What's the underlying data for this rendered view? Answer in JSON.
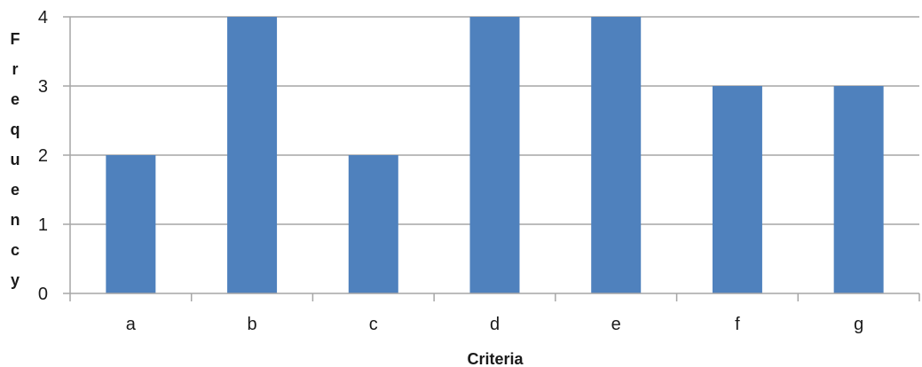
{
  "chart_data": {
    "type": "bar",
    "title": "",
    "xlabel": "Criteria",
    "ylabel": "Frequency",
    "categories": [
      "a",
      "b",
      "c",
      "d",
      "e",
      "f",
      "g"
    ],
    "values": [
      2,
      4,
      2,
      4,
      4,
      3,
      3
    ],
    "ylim": [
      0,
      4
    ],
    "yticks": [
      "0",
      "1",
      "2",
      "3",
      "4"
    ],
    "grid": true,
    "legend": "none",
    "bar_color": "#4F81BD",
    "grid_color": "#a6a6a6"
  }
}
